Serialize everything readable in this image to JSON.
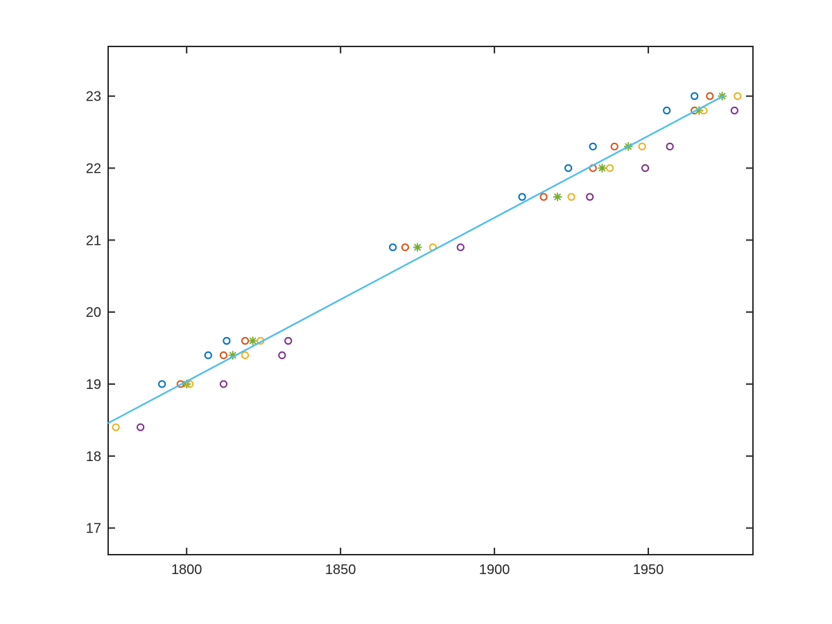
{
  "figure": {
    "background": "#ffffff",
    "axis_color": "#262626",
    "title": ""
  },
  "chart_data": {
    "type": "scatter",
    "title": "",
    "xlabel": "",
    "ylabel": "",
    "grid": false,
    "legend": null,
    "xlim": [
      1774.5,
      1984.0
    ],
    "ylim": [
      16.63,
      23.69
    ],
    "xticks": [
      1800,
      1850,
      1900,
      1950
    ],
    "yticks": [
      17,
      18,
      19,
      20,
      21,
      22,
      23
    ],
    "series": [
      {
        "name": "series-blue",
        "marker": "circle",
        "color": "#0072BD",
        "points": [
          [
            1792,
            19.0
          ],
          [
            1807,
            19.4
          ],
          [
            1813,
            19.6
          ],
          [
            1867,
            20.9
          ],
          [
            1909,
            21.6
          ],
          [
            1924,
            22.0
          ],
          [
            1932,
            22.3
          ],
          [
            1956,
            22.8
          ],
          [
            1965,
            23.0
          ]
        ]
      },
      {
        "name": "series-orange",
        "marker": "circle",
        "color": "#D95319",
        "points": [
          [
            1798,
            19.0
          ],
          [
            1812,
            19.4
          ],
          [
            1819,
            19.6
          ],
          [
            1871,
            20.9
          ],
          [
            1916,
            21.6
          ],
          [
            1932,
            22.0
          ],
          [
            1939,
            22.3
          ],
          [
            1965,
            22.8
          ],
          [
            1970,
            23.0
          ]
        ]
      },
      {
        "name": "series-green-asterisk",
        "marker": "asterisk",
        "color": "#77AC30",
        "points": [
          [
            1800,
            19.0
          ],
          [
            1815,
            19.4
          ],
          [
            1821.5,
            19.6
          ],
          [
            1875,
            20.9
          ],
          [
            1920.5,
            21.6
          ],
          [
            1935,
            22.0
          ],
          [
            1943.5,
            22.3
          ],
          [
            1966.5,
            22.8
          ],
          [
            1974,
            23.0
          ]
        ]
      },
      {
        "name": "series-yellow",
        "marker": "circle",
        "color": "#EDB120",
        "points": [
          [
            1777,
            18.4
          ],
          [
            1801,
            19.0
          ],
          [
            1819,
            19.4
          ],
          [
            1824,
            19.6
          ],
          [
            1880,
            20.9
          ],
          [
            1925,
            21.6
          ],
          [
            1937.5,
            22.0
          ],
          [
            1948,
            22.3
          ],
          [
            1968,
            22.8
          ],
          [
            1979,
            23.0
          ]
        ]
      },
      {
        "name": "series-purple",
        "marker": "circle",
        "color": "#7E2F8E",
        "points": [
          [
            1785,
            18.4
          ],
          [
            1812,
            19.0
          ],
          [
            1831,
            19.4
          ],
          [
            1833,
            19.6
          ],
          [
            1889,
            20.9
          ],
          [
            1931,
            21.6
          ],
          [
            1949,
            22.0
          ],
          [
            1957,
            22.3
          ],
          [
            1978,
            22.8
          ]
        ]
      }
    ],
    "fit_line": {
      "name": "linear-fit-line",
      "color": "#4DBEEE",
      "points": [
        [
          1774.6,
          18.46
        ],
        [
          1974.3,
          23.0
        ]
      ]
    }
  }
}
